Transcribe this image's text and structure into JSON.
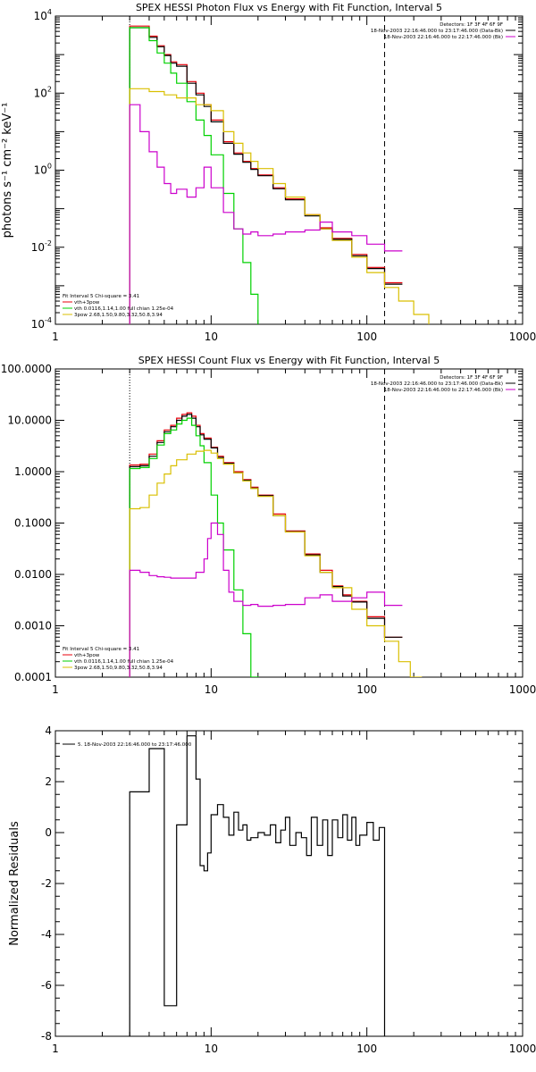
{
  "chart_data": [
    {
      "type": "line",
      "title": "SPEX HESSI Photon Flux vs Energy with Fit Function, Interval 5",
      "xlabel": "",
      "ylabel": "photons s⁻¹ cm⁻² keV⁻¹",
      "xscale": "log",
      "yscale": "log",
      "xlim": [
        1,
        1000
      ],
      "ylim": [
        0.0001,
        10000
      ],
      "xticks": [
        "1",
        "10",
        "100",
        "1000"
      ],
      "yticks": [
        {
          "base": "10",
          "exp": "4"
        },
        {
          "base": "10",
          "exp": "2"
        },
        {
          "base": "10",
          "exp": "0"
        },
        {
          "base": "10",
          "exp": "-2"
        },
        {
          "base": "10",
          "exp": "-4"
        }
      ],
      "vlines": [
        {
          "x": 3,
          "style": "dotted"
        },
        {
          "x": 130,
          "style": "dashed"
        }
      ],
      "header_lines": [
        "Detectors: 1F 3F 4F 6F 9F",
        "18-Nov-2003 22:16:46.000 to 23:17:46.000 (Data-Bk)",
        "18-Nov-2003 22:16:46.000 to 22:17:46.000 (Bk)"
      ],
      "legend_header": "Fit Interval 5   Chi-square = 3.41",
      "legend": [
        {
          "label": "vth+3pow",
          "color": "#e8000b"
        },
        {
          "label": "vth 0.0116,1.14,1.00  full chian 1.25e-04",
          "color": "#00d100"
        },
        {
          "label": "3pow 2.68,1.50,9.80,3.32,50.8,3.94",
          "color": "#d9bf00"
        }
      ],
      "series": [
        {
          "name": "vth+3pow",
          "color": "#e8000b",
          "x": [
            3,
            3.5,
            4,
            4.5,
            5,
            5.5,
            6,
            7,
            8,
            9,
            10,
            12,
            14,
            16,
            18,
            20,
            25,
            30,
            40,
            50,
            60,
            80,
            100,
            130
          ],
          "y": [
            5500,
            5500,
            3000,
            1700,
            1000,
            650,
            550,
            200,
            100,
            50,
            20,
            5.5,
            2.8,
            1.7,
            1.1,
            0.75,
            0.35,
            0.18,
            0.07,
            0.032,
            0.017,
            0.0065,
            0.003,
            0.0012
          ]
        },
        {
          "name": "",
          "color": "#000000",
          "x": [
            3,
            3.5,
            4,
            4.5,
            5,
            5.5,
            6,
            7,
            8,
            9,
            10,
            12,
            14,
            16,
            18,
            20,
            25,
            30,
            40,
            50,
            60,
            80,
            100,
            130
          ],
          "y": [
            5000,
            5000,
            2800,
            1600,
            950,
            600,
            500,
            180,
            90,
            45,
            18,
            5,
            2.6,
            1.6,
            1.05,
            0.72,
            0.33,
            0.17,
            0.065,
            0.03,
            0.016,
            0.006,
            0.0028,
            0.0011
          ]
        },
        {
          "name": "vth",
          "color": "#00d100",
          "x": [
            3,
            3.5,
            4,
            4.5,
            5,
            5.5,
            6,
            7,
            8,
            9,
            10,
            12,
            14,
            16,
            18,
            20
          ],
          "y": [
            5000,
            5000,
            2300,
            1100,
            600,
            330,
            180,
            60,
            20,
            8,
            2.5,
            0.25,
            0.03,
            0.004,
            0.0006,
            8e-05
          ]
        },
        {
          "name": "3pow",
          "color": "#d9bf00",
          "x": [
            3,
            4,
            5,
            6,
            8,
            10,
            12,
            14,
            16,
            18,
            20,
            25,
            30,
            40,
            50,
            60,
            80,
            100,
            130,
            160,
            200,
            250,
            280
          ],
          "y": [
            130,
            110,
            90,
            75,
            50,
            35,
            10,
            5,
            2.8,
            1.7,
            1.1,
            0.45,
            0.2,
            0.07,
            0.03,
            0.015,
            0.0055,
            0.0022,
            0.0009,
            0.0004,
            0.00018,
            8e-05,
            6e-05
          ]
        },
        {
          "name": "",
          "color": "#cc00cc",
          "x": [
            3,
            3.5,
            4,
            4.5,
            5,
            5.5,
            6,
            7,
            8,
            9,
            10,
            12,
            14,
            16,
            18,
            20,
            25,
            30,
            40,
            50,
            60,
            80,
            100,
            130
          ],
          "y": [
            50,
            10,
            3,
            1.2,
            0.45,
            0.25,
            0.32,
            0.2,
            0.35,
            1.2,
            0.35,
            0.08,
            0.03,
            0.022,
            0.025,
            0.02,
            0.022,
            0.025,
            0.028,
            0.045,
            0.025,
            0.02,
            0.012,
            0.008
          ]
        }
      ]
    },
    {
      "type": "line",
      "title": "SPEX HESSI Count Flux vs Energy with Fit Function, Interval 5",
      "xlabel": "",
      "ylabel": "",
      "xscale": "log",
      "yscale": "log",
      "xlim": [
        1,
        1000
      ],
      "ylim": [
        0.0001,
        100
      ],
      "xticks": [
        "1",
        "10",
        "100",
        "1000"
      ],
      "yticks": [
        "100.0000",
        "10.0000",
        "1.0000",
        "0.1000",
        "0.0100",
        "0.0010",
        "0.0001"
      ],
      "vlines": [
        {
          "x": 3,
          "style": "dotted"
        },
        {
          "x": 130,
          "style": "dashed"
        }
      ],
      "header_lines": [
        "Detectors: 1F 3F 4F 6F 9F",
        "18-Nov-2003 22:16:46.000 to 23:17:46.000 (Data-Bk)",
        "18-Nov-2003 22:16:46.000 to 22:17:46.000 (Bk)"
      ],
      "legend_header": "Fit Interval 5   Chi-square = 3.41",
      "legend": [
        {
          "label": "vth+3pow",
          "color": "#e8000b"
        },
        {
          "label": "vth 0.0116,1.14,1.00  full chian 1.25e-04",
          "color": "#00d100"
        },
        {
          "label": "3pow 2.68,1.50,9.80,3.32,50.8,3.94",
          "color": "#d9bf00"
        }
      ],
      "series": [
        {
          "name": "vth+3pow",
          "color": "#e8000b",
          "x": [
            3,
            3.5,
            4,
            4.5,
            5,
            5.5,
            6,
            6.5,
            7,
            7.5,
            8,
            8.5,
            9,
            10,
            11,
            12,
            14,
            16,
            18,
            20,
            25,
            30,
            40,
            50,
            60,
            70,
            80,
            100,
            130
          ],
          "y": [
            1.35,
            1.4,
            2.2,
            4,
            6.5,
            8,
            11,
            13,
            14,
            12,
            8,
            5.5,
            4.5,
            3,
            2,
            1.5,
            1,
            0.7,
            0.5,
            0.35,
            0.15,
            0.07,
            0.025,
            0.012,
            0.006,
            0.004,
            0.003,
            0.0015,
            0.0006
          ]
        },
        {
          "name": "",
          "color": "#000000",
          "x": [
            3,
            3.5,
            4,
            4.5,
            5,
            5.5,
            6,
            6.5,
            7,
            7.5,
            8,
            8.5,
            9,
            10,
            11,
            12,
            14,
            16,
            18,
            20,
            25,
            30,
            40,
            50,
            60,
            70,
            80,
            100,
            130
          ],
          "y": [
            1.25,
            1.3,
            2,
            3.7,
            6,
            7.5,
            10,
            12,
            13,
            11,
            7.5,
            5.2,
            4.3,
            2.9,
            1.9,
            1.45,
            0.95,
            0.68,
            0.48,
            0.34,
            0.14,
            0.068,
            0.024,
            0.011,
            0.0058,
            0.0038,
            0.0029,
            0.0014,
            0.0006
          ]
        },
        {
          "name": "vth",
          "color": "#00d100",
          "x": [
            3,
            3.5,
            4,
            4.5,
            5,
            5.5,
            6,
            6.5,
            7,
            7.5,
            8,
            8.5,
            9,
            10,
            11,
            12,
            14,
            16,
            18
          ],
          "y": [
            1.15,
            1.2,
            1.8,
            3.3,
            5.5,
            6.5,
            8.5,
            10,
            11,
            8,
            5,
            3.2,
            1.5,
            0.35,
            0.1,
            0.03,
            0.005,
            0.0007,
            0.0001
          ]
        },
        {
          "name": "3pow",
          "color": "#d9bf00",
          "x": [
            3,
            3.5,
            4,
            4.5,
            5,
            5.5,
            6,
            7,
            8,
            9,
            10,
            11,
            12,
            14,
            16,
            18,
            20,
            25,
            30,
            40,
            50,
            60,
            80,
            100,
            130,
            160,
            190
          ],
          "y": [
            0.19,
            0.2,
            0.35,
            0.6,
            0.9,
            1.3,
            1.7,
            2.2,
            2.5,
            2.6,
            2.3,
            1.8,
            1.4,
            0.95,
            0.66,
            0.47,
            0.33,
            0.14,
            0.067,
            0.023,
            0.011,
            0.0055,
            0.0021,
            0.001,
            0.0005,
            0.0002,
            0.0001
          ]
        },
        {
          "name": "",
          "color": "#cc00cc",
          "x": [
            3,
            3.5,
            4,
            4.5,
            5,
            5.5,
            6,
            7,
            8,
            9,
            9.5,
            10,
            10.5,
            11,
            12,
            13,
            14,
            16,
            18,
            20,
            25,
            30,
            40,
            50,
            60,
            80,
            100,
            130
          ],
          "y": [
            0.012,
            0.011,
            0.0095,
            0.009,
            0.0088,
            0.0085,
            0.0085,
            0.0085,
            0.011,
            0.02,
            0.05,
            0.1,
            0.1,
            0.06,
            0.012,
            0.0045,
            0.003,
            0.0025,
            0.0026,
            0.0024,
            0.0025,
            0.0026,
            0.0035,
            0.004,
            0.003,
            0.0035,
            0.0045,
            0.0025
          ]
        }
      ]
    },
    {
      "type": "line",
      "title": "",
      "xlabel": "",
      "ylabel": "Normalized Residuals",
      "xscale": "log",
      "yscale": "linear",
      "xlim": [
        1,
        1000
      ],
      "ylim": [
        -8,
        4
      ],
      "xticks": [
        "1",
        "10",
        "100",
        "1000"
      ],
      "yticks": [
        "4",
        "2",
        "0",
        "-2",
        "-4",
        "-6",
        "-8"
      ],
      "legend": [
        {
          "label": "5. 18-Nov-2003 22:16:46.000 to 23:17:46.000",
          "color": "#000000"
        }
      ],
      "series": [
        {
          "name": "5. 18-Nov-2003 22:16:46.000 to 23:17:46.000",
          "color": "#000000",
          "x": [
            3,
            4,
            5,
            5.5,
            6,
            7,
            7.5,
            8,
            8.5,
            9,
            9.5,
            10,
            11,
            12,
            13,
            14,
            15,
            16,
            17,
            18,
            20,
            22,
            24,
            26,
            28,
            30,
            32,
            35,
            38,
            41,
            44,
            48,
            52,
            56,
            60,
            65,
            70,
            75,
            80,
            85,
            90,
            100,
            110,
            120,
            130
          ],
          "y": [
            1.6,
            3.3,
            -6.8,
            -6.8,
            0.3,
            3.8,
            3.8,
            2.1,
            -1.3,
            -1.5,
            -0.8,
            0.7,
            1.1,
            0.6,
            -0.1,
            0.8,
            0.1,
            0.3,
            -0.3,
            -0.2,
            0.0,
            -0.1,
            0.3,
            -0.4,
            0.1,
            0.6,
            -0.5,
            0.0,
            -0.2,
            -0.9,
            0.6,
            -0.5,
            0.5,
            -0.9,
            0.5,
            -0.2,
            0.7,
            -0.3,
            0.6,
            -0.5,
            -0.1,
            0.4,
            -0.3,
            0.2,
            -8.0
          ]
        }
      ]
    }
  ]
}
